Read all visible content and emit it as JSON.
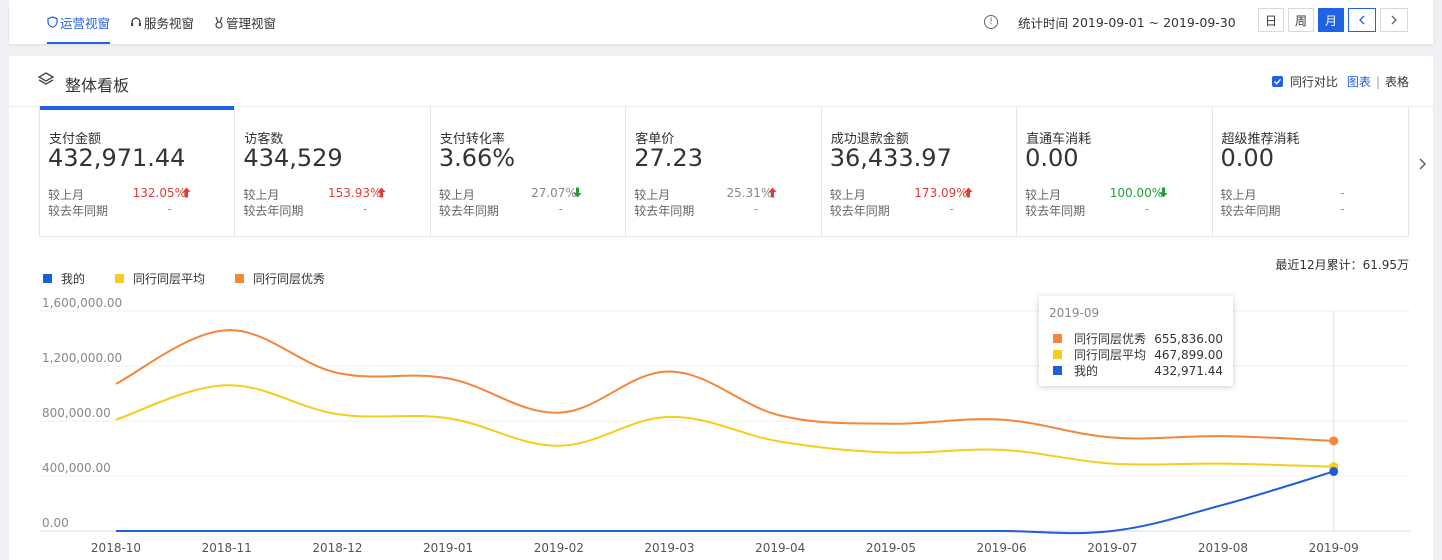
{
  "topbar": {
    "tabs": [
      {
        "label": "运营视窗",
        "icon": "shield-icon",
        "active": true
      },
      {
        "label": "服务视窗",
        "icon": "headset-icon",
        "active": false
      },
      {
        "label": "管理视窗",
        "icon": "medal-icon",
        "active": false
      }
    ],
    "stat_label": "统计时间",
    "stat_range": "2019-09-01 ~ 2019-09-30",
    "periods": [
      {
        "label": "日",
        "active": false
      },
      {
        "label": "周",
        "active": false
      },
      {
        "label": "月",
        "active": true
      }
    ]
  },
  "panel": {
    "title": "整体看板",
    "compare_label": "同行对比",
    "view_chart": "图表",
    "view_separator": "|",
    "view_table": "表格",
    "prev_label": "较上月",
    "yoy_label": "较去年同期",
    "cards": [
      {
        "label": "支付金额",
        "value": "432,971.44",
        "mom": "132.05%",
        "mom_dir": "up",
        "yoy": "-"
      },
      {
        "label": "访客数",
        "value": "434,529",
        "mom": "153.93%",
        "mom_dir": "up",
        "yoy": "-"
      },
      {
        "label": "支付转化率",
        "value": "3.66%",
        "mom": "27.07%",
        "mom_dir": "down-neutral",
        "yoy": "-"
      },
      {
        "label": "客单价",
        "value": "27.23",
        "mom": "25.31%",
        "mom_dir": "up-neutral",
        "yoy": "-"
      },
      {
        "label": "成功退款金额",
        "value": "36,433.97",
        "mom": "173.09%",
        "mom_dir": "up",
        "yoy": "-"
      },
      {
        "label": "直通车消耗",
        "value": "0.00",
        "mom": "100.00%",
        "mom_dir": "down",
        "yoy": "-"
      },
      {
        "label": "超级推荐消耗",
        "value": "0.00",
        "mom": "-",
        "mom_dir": "none",
        "yoy": "-"
      }
    ],
    "recent_total": "最近12月累计：61.95万"
  },
  "chart_data": {
    "type": "line",
    "categories": [
      "2018-10",
      "2018-11",
      "2018-12",
      "2019-01",
      "2019-02",
      "2019-03",
      "2019-04",
      "2019-05",
      "2019-06",
      "2019-07",
      "2019-08",
      "2019-09"
    ],
    "yticks": [
      "0.00",
      "400,000.00",
      "800,000.00",
      "1,200,000.00",
      "1,600,000.00"
    ],
    "ylim": [
      0,
      1600000
    ],
    "series": [
      {
        "name": "我的",
        "color": "#1f5fd6",
        "values": [
          0,
          0,
          0,
          0,
          0,
          0,
          0,
          0,
          0,
          0,
          190000,
          432971.44
        ]
      },
      {
        "name": "同行同层平均",
        "color": "#f5cd1c",
        "values": [
          810000,
          1060000,
          850000,
          820000,
          620000,
          830000,
          650000,
          570000,
          590000,
          490000,
          490000,
          467899
        ]
      },
      {
        "name": "同行同层优秀",
        "color": "#f5863a",
        "values": [
          1070000,
          1460000,
          1150000,
          1110000,
          860000,
          1160000,
          840000,
          780000,
          810000,
          680000,
          690000,
          655836
        ]
      }
    ],
    "grid": true,
    "legend": "top-left"
  },
  "tooltip": {
    "title": "2019-09",
    "rows": [
      {
        "name": "同行同层优秀",
        "value": "655,836.00",
        "color": "#f5863a"
      },
      {
        "name": "同行同层平均",
        "value": "467,899.00",
        "color": "#f5cd1c"
      },
      {
        "name": "我的",
        "value": "432,971.44",
        "color": "#1f5fd6"
      }
    ]
  }
}
